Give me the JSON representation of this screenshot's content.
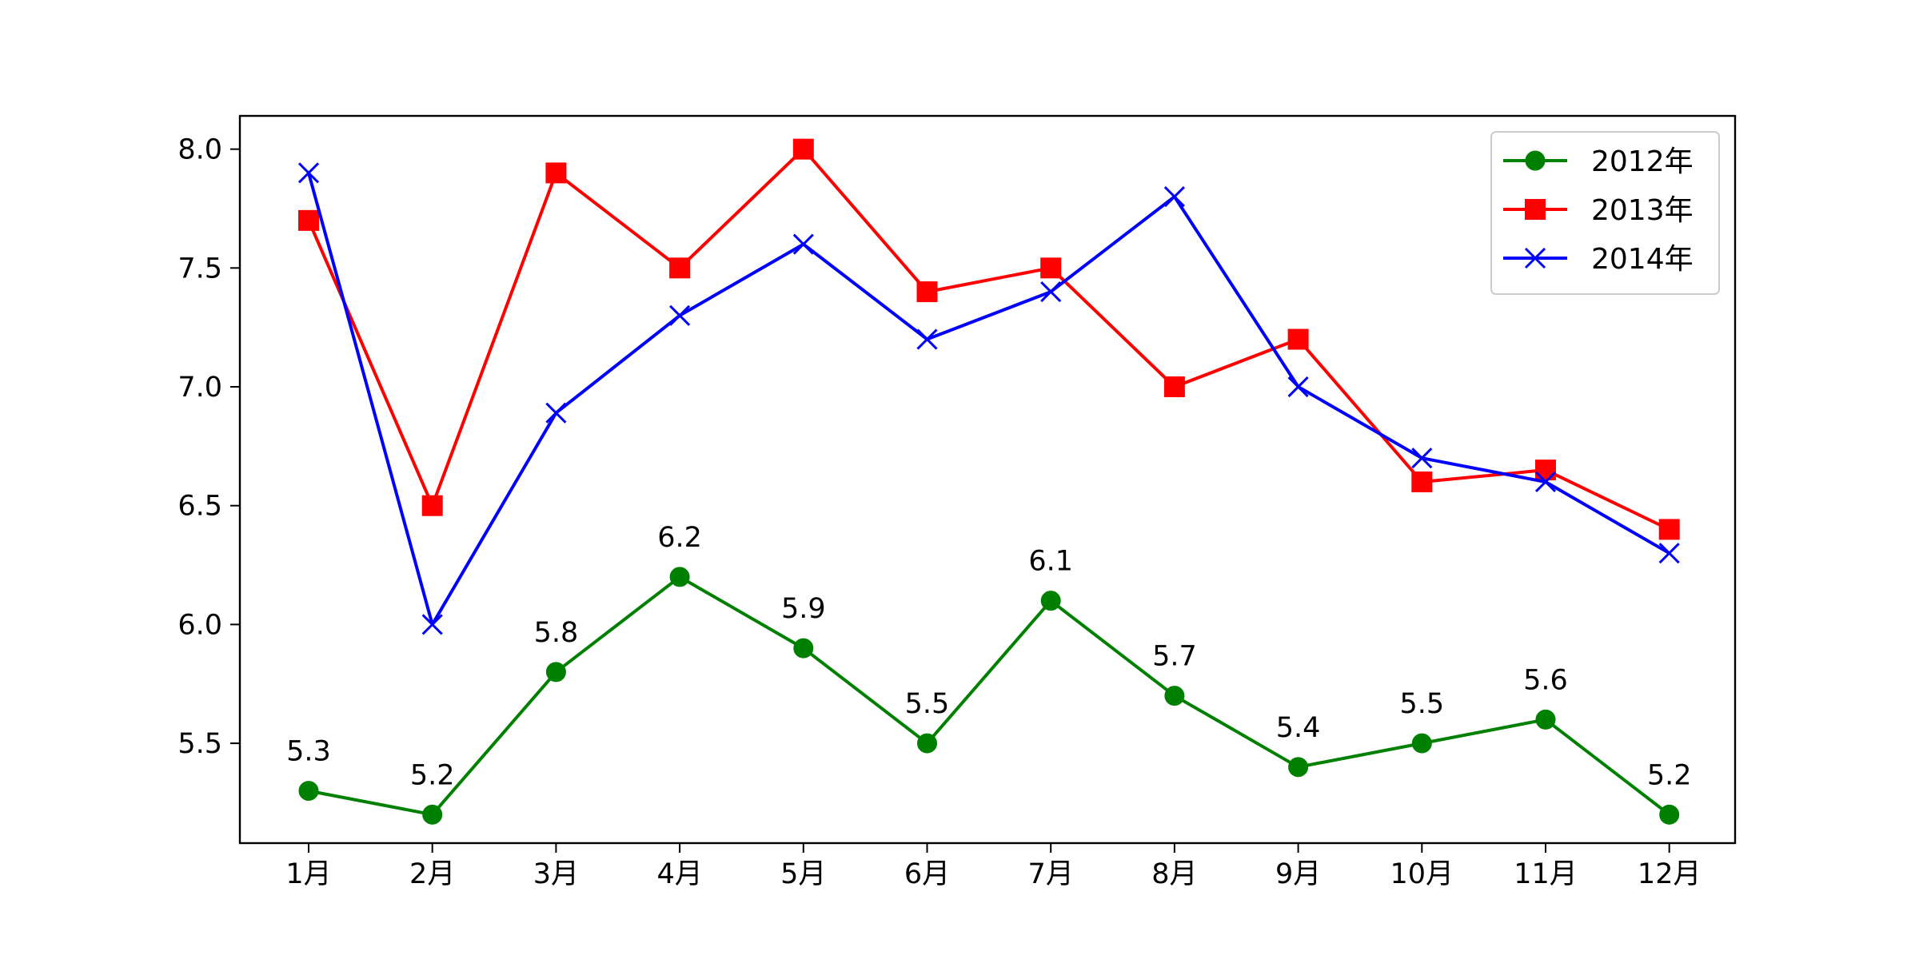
{
  "chart_data": {
    "type": "line",
    "title": "",
    "xlabel": "",
    "ylabel": "",
    "categories": [
      "1月",
      "2月",
      "3月",
      "4月",
      "5月",
      "6月",
      "7月",
      "8月",
      "9月",
      "10月",
      "11月",
      "12月"
    ],
    "ylim": [
      5.08,
      8.14
    ],
    "yticks": [
      5.5,
      6.0,
      6.5,
      7.0,
      7.5,
      8.0
    ],
    "ytick_labels": [
      "5.5",
      "6.0",
      "6.5",
      "7.0",
      "7.5",
      "8.0"
    ],
    "grid": false,
    "legend_position": "upper right",
    "series": [
      {
        "name": "2012年",
        "color": "#008000",
        "marker": "circle",
        "values": [
          5.3,
          5.2,
          5.8,
          6.2,
          5.9,
          5.5,
          6.1,
          5.7,
          5.4,
          5.5,
          5.6,
          5.2
        ],
        "value_labels": [
          "5.3",
          "5.2",
          "5.8",
          "6.2",
          "5.9",
          "5.5",
          "6.1",
          "5.7",
          "5.4",
          "5.5",
          "5.6",
          "5.2"
        ]
      },
      {
        "name": "2013年",
        "color": "#ff0000",
        "marker": "square",
        "values": [
          7.7,
          6.5,
          7.9,
          7.5,
          8.0,
          7.4,
          7.5,
          7.0,
          7.2,
          6.6,
          6.65,
          6.4
        ]
      },
      {
        "name": "2014年",
        "color": "#0000ff",
        "marker": "x",
        "values": [
          7.9,
          6.0,
          6.89,
          7.3,
          7.6,
          7.2,
          7.4,
          7.8,
          7.0,
          6.7,
          6.6,
          6.3
        ]
      }
    ]
  }
}
